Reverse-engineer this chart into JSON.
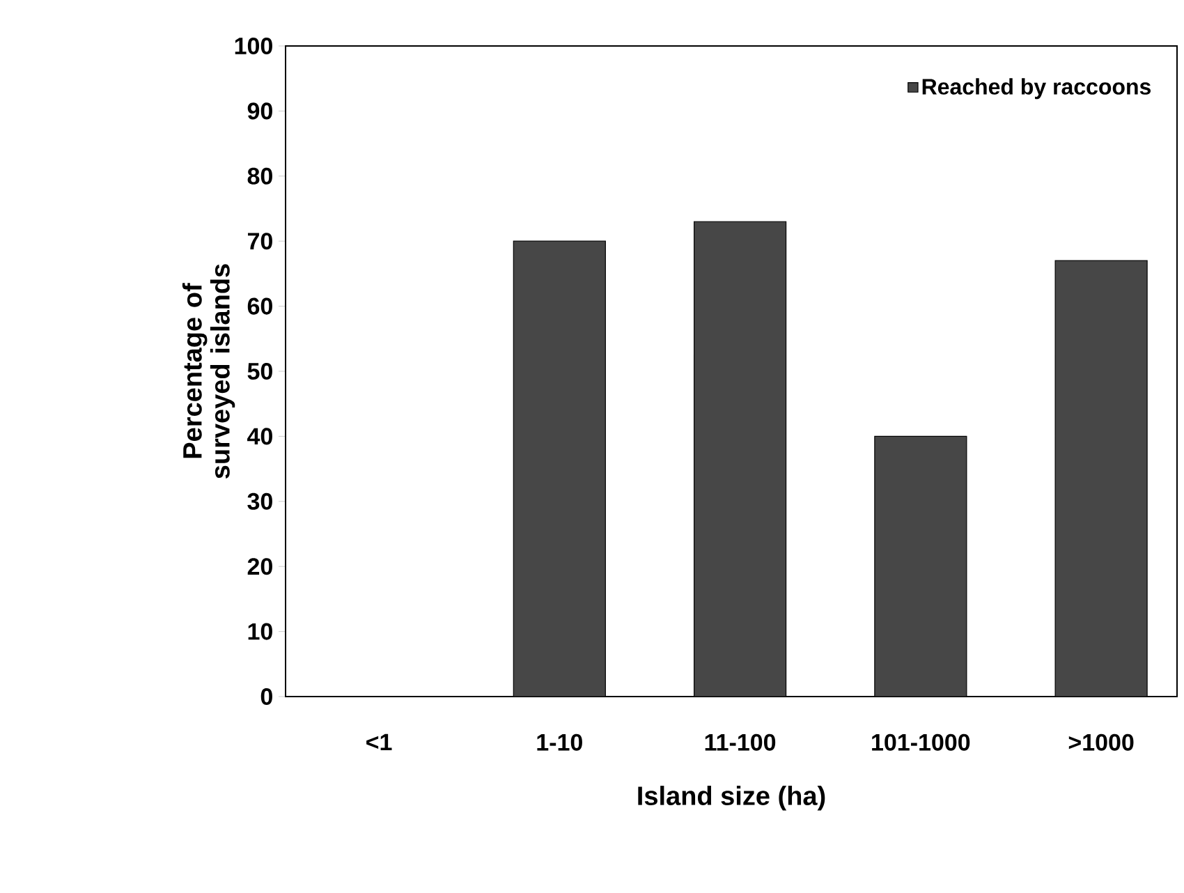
{
  "chart_data": {
    "type": "bar",
    "xlabel": "Island size (ha)",
    "ylabel": "Percentage of surveyed islands",
    "categories": [
      "<1",
      "1-10",
      "11-100",
      "101-1000",
      ">1000"
    ],
    "series": [
      {
        "name": "Reached by raccoons",
        "color": "#474747",
        "values": [
          0,
          70,
          73,
          40,
          67
        ]
      }
    ],
    "ylim": [
      0,
      100
    ],
    "yticks": [
      0,
      10,
      20,
      30,
      40,
      50,
      60,
      70,
      80,
      90,
      100
    ],
    "grid": false,
    "legend": "top right"
  }
}
